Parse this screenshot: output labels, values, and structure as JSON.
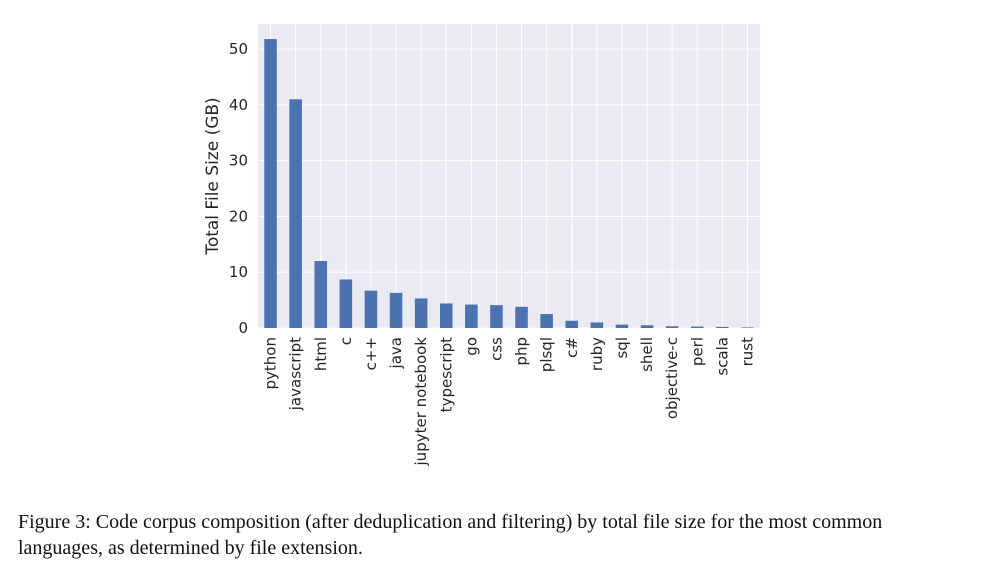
{
  "chart_data": {
    "type": "bar",
    "categories": [
      "python",
      "javascript",
      "html",
      "c",
      "c++",
      "java",
      "jupyter notebook",
      "typescript",
      "go",
      "css",
      "php",
      "plsql",
      "c#",
      "ruby",
      "sql",
      "shell",
      "objective-c",
      "perl",
      "scala",
      "rust"
    ],
    "values": [
      51.8,
      41.0,
      12.0,
      8.7,
      6.7,
      6.3,
      5.3,
      4.4,
      4.2,
      4.1,
      3.8,
      2.5,
      1.3,
      1.0,
      0.6,
      0.5,
      0.3,
      0.25,
      0.2,
      0.1
    ],
    "ylabel": "Total File Size (GB)",
    "xlabel": "",
    "ylim": [
      0,
      54.5
    ],
    "yticks": [
      0,
      10,
      20,
      30,
      40,
      50
    ],
    "grid": true,
    "colors": {
      "bar": "#4c72b0",
      "plot_background": "#eaeaf2",
      "grid": "#ffffff"
    }
  },
  "caption": "Figure 3: Code corpus composition (after deduplication and filtering) by total file size for the most common languages, as determined by file extension."
}
